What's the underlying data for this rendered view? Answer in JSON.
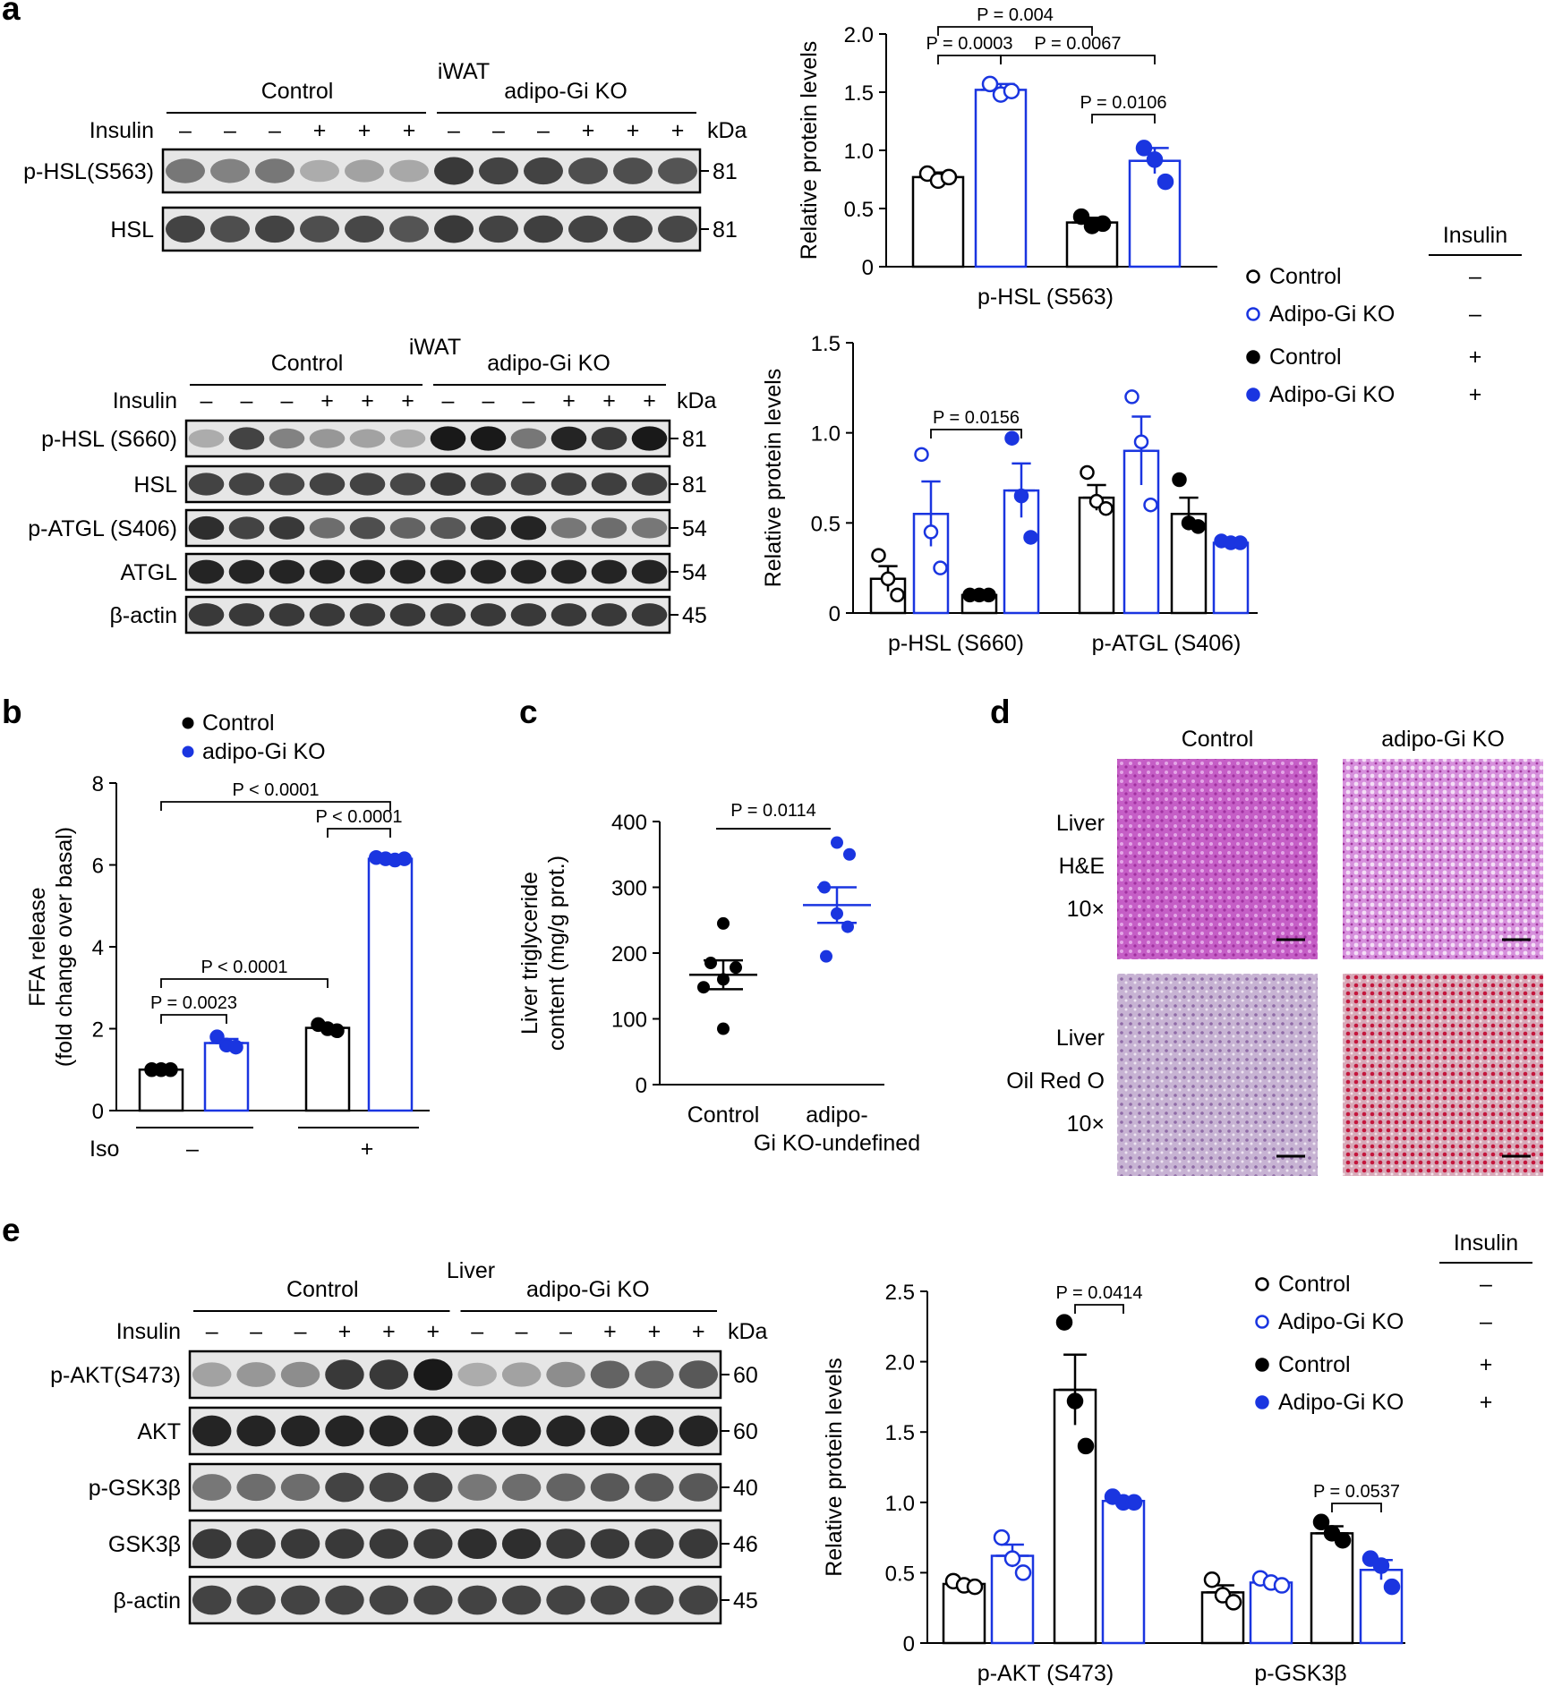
{
  "panels": {
    "a": "a",
    "b": "b",
    "c": "c",
    "d": "d",
    "e": "e"
  },
  "colors": {
    "black": "#000000",
    "blue": "#1a35e0",
    "band": "#222222"
  },
  "blot_a1": {
    "tissue": "iWAT",
    "group_left": "Control",
    "group_right": "adipo-Gi KO",
    "insulin_label": "Insulin",
    "insulin_signs": [
      "–",
      "–",
      "–",
      "+",
      "+",
      "+",
      "–",
      "–",
      "–",
      "+",
      "+",
      "+"
    ],
    "kda_label": "kDa",
    "rows": [
      {
        "label": "p-HSL(S563)",
        "kda": "81",
        "intensity": [
          0.55,
          0.5,
          0.55,
          0.3,
          0.35,
          0.32,
          0.85,
          0.8,
          0.8,
          0.75,
          0.75,
          0.72
        ]
      },
      {
        "label": "HSL",
        "kda": "81",
        "intensity": [
          0.8,
          0.75,
          0.8,
          0.75,
          0.78,
          0.72,
          0.85,
          0.8,
          0.82,
          0.8,
          0.8,
          0.78
        ]
      }
    ]
  },
  "blot_a2": {
    "tissue": "iWAT",
    "group_left": "Control",
    "group_right": "adipo-Gi KO",
    "insulin_label": "Insulin",
    "insulin_signs": [
      "–",
      "–",
      "–",
      "+",
      "+",
      "+",
      "–",
      "–",
      "–",
      "+",
      "+",
      "+"
    ],
    "kda_label": "kDa",
    "rows": [
      {
        "label": "p-HSL (S660)",
        "kda": "81",
        "intensity": [
          0.3,
          0.8,
          0.5,
          0.4,
          0.35,
          0.3,
          1.0,
          1.0,
          0.55,
          0.95,
          0.85,
          1.0
        ]
      },
      {
        "label": "HSL",
        "kda": "81",
        "intensity": [
          0.8,
          0.8,
          0.78,
          0.8,
          0.8,
          0.78,
          0.85,
          0.82,
          0.8,
          0.82,
          0.82,
          0.82
        ]
      },
      {
        "label": "p-ATGL (S406)",
        "kda": "54",
        "intensity": [
          0.9,
          0.8,
          0.85,
          0.6,
          0.75,
          0.65,
          0.7,
          0.9,
          0.95,
          0.55,
          0.6,
          0.55
        ]
      },
      {
        "label": "ATGL",
        "kda": "54",
        "intensity": [
          0.95,
          0.95,
          0.95,
          0.95,
          0.95,
          0.95,
          0.95,
          0.95,
          0.95,
          0.95,
          0.95,
          0.95
        ]
      },
      {
        "label": "β-actin",
        "kda": "45",
        "intensity": [
          0.85,
          0.85,
          0.85,
          0.85,
          0.85,
          0.85,
          0.85,
          0.85,
          0.85,
          0.85,
          0.85,
          0.85
        ]
      }
    ]
  },
  "blot_e": {
    "tissue": "Liver",
    "group_left": "Control",
    "group_right": "adipo-Gi KO",
    "insulin_label": "Insulin",
    "insulin_signs": [
      "–",
      "–",
      "–",
      "+",
      "+",
      "+",
      "–",
      "–",
      "–",
      "+",
      "+",
      "+"
    ],
    "kda_label": "kDa",
    "rows": [
      {
        "label": "p-AKT(S473)",
        "kda": "60",
        "intensity": [
          0.35,
          0.4,
          0.45,
          0.85,
          0.85,
          1.0,
          0.3,
          0.35,
          0.45,
          0.65,
          0.65,
          0.7
        ]
      },
      {
        "label": "AKT",
        "kda": "60",
        "intensity": [
          0.95,
          0.95,
          0.95,
          0.95,
          0.95,
          0.95,
          0.95,
          0.95,
          0.95,
          0.95,
          0.95,
          0.95
        ]
      },
      {
        "label": "p-GSK3β",
        "kda": "40",
        "intensity": [
          0.55,
          0.6,
          0.6,
          0.8,
          0.8,
          0.8,
          0.55,
          0.6,
          0.65,
          0.7,
          0.7,
          0.7
        ]
      },
      {
        "label": "GSK3β",
        "kda": "46",
        "intensity": [
          0.85,
          0.85,
          0.85,
          0.85,
          0.85,
          0.85,
          0.9,
          0.9,
          0.85,
          0.85,
          0.85,
          0.85
        ]
      },
      {
        "label": "β-actin",
        "kda": "45",
        "intensity": [
          0.8,
          0.8,
          0.8,
          0.8,
          0.8,
          0.8,
          0.8,
          0.8,
          0.8,
          0.8,
          0.8,
          0.8
        ]
      }
    ]
  },
  "legend_insulin": {
    "header": "Insulin",
    "items": [
      {
        "name": "Control",
        "sign": "–",
        "filled": false,
        "color": "#000000"
      },
      {
        "name": "Adipo-Gi KO",
        "sign": "–",
        "filled": false,
        "color": "#1a35e0"
      },
      {
        "name": "Control",
        "sign": "+",
        "filled": true,
        "color": "#000000"
      },
      {
        "name": "Adipo-Gi KO",
        "sign": "+",
        "filled": true,
        "color": "#1a35e0"
      }
    ]
  },
  "legend_b": [
    {
      "name": "Control",
      "color": "#000000"
    },
    {
      "name": "adipo-Gi KO",
      "color": "#1a35e0"
    }
  ],
  "histology": {
    "col_headers": [
      "Control",
      "adipo-Gi KO"
    ],
    "rows": [
      {
        "labels": [
          "Liver",
          "H&E",
          "10×"
        ],
        "tint": [
          "#c04fc0",
          "#cf7ad6"
        ]
      },
      {
        "labels": [
          "Liver",
          "Oil Red O",
          "10×"
        ],
        "tint": [
          "#b59ac4",
          "#c85d78"
        ]
      }
    ]
  },
  "chart_data": [
    {
      "id": "a_top",
      "type": "bar",
      "ylabel": "Relative protein levels",
      "ylim": [
        0,
        2.0
      ],
      "yticks": [
        "0",
        "0.5",
        "1.0",
        "1.5",
        "2.0"
      ],
      "groups": [
        {
          "label": "p-HSL (S563)",
          "bars": [
            {
              "value": 0.77,
              "err": 0.04,
              "points": [
                0.8,
                0.74,
                0.77
              ],
              "color": "#000000",
              "filled": false
            },
            {
              "value": 1.52,
              "err": 0.05,
              "points": [
                1.57,
                1.48,
                1.51
              ],
              "color": "#1a35e0",
              "filled": false
            },
            {
              "value": 0.38,
              "err": 0.04,
              "points": [
                0.43,
                0.35,
                0.37
              ],
              "color": "#000000",
              "filled": true
            },
            {
              "value": 0.91,
              "err": 0.11,
              "points": [
                1.02,
                0.92,
                0.73
              ],
              "color": "#1a35e0",
              "filled": true
            }
          ]
        }
      ],
      "annotations": [
        {
          "text": "P = 0.004",
          "from": [
            0,
            0
          ],
          "to": [
            0,
            2
          ]
        },
        {
          "text": "P = 0.0003",
          "from": [
            0,
            0
          ],
          "to": [
            0,
            1
          ]
        },
        {
          "text": "P = 0.0067",
          "from": [
            0,
            1
          ],
          "to": [
            0,
            3
          ]
        },
        {
          "text": "P = 0.0106",
          "from": [
            0,
            2
          ],
          "to": [
            0,
            3
          ]
        }
      ]
    },
    {
      "id": "a_bottom",
      "type": "bar",
      "ylabel": "Relative protein levels",
      "ylim": [
        0,
        1.5
      ],
      "yticks": [
        "0",
        "0.5",
        "1.0",
        "1.5"
      ],
      "groups": [
        {
          "label": "p-HSL (S660)",
          "bars": [
            {
              "value": 0.19,
              "err": 0.07,
              "points": [
                0.32,
                0.19,
                0.1
              ],
              "color": "#000000",
              "filled": false
            },
            {
              "value": 0.55,
              "err": 0.18,
              "points": [
                0.88,
                0.45,
                0.25
              ],
              "color": "#1a35e0",
              "filled": false
            },
            {
              "value": 0.1,
              "err": 0.005,
              "points": [
                0.1,
                0.1,
                0.1
              ],
              "color": "#000000",
              "filled": true
            },
            {
              "value": 0.68,
              "err": 0.15,
              "points": [
                0.97,
                0.65,
                0.42
              ],
              "color": "#1a35e0",
              "filled": true
            }
          ]
        },
        {
          "label": "p-ATGL (S406)",
          "bars": [
            {
              "value": 0.64,
              "err": 0.07,
              "points": [
                0.78,
                0.62,
                0.58
              ],
              "color": "#000000",
              "filled": false
            },
            {
              "value": 0.9,
              "err": 0.19,
              "points": [
                1.2,
                0.95,
                0.6
              ],
              "color": "#1a35e0",
              "filled": false
            },
            {
              "value": 0.55,
              "err": 0.09,
              "points": [
                0.74,
                0.5,
                0.48
              ],
              "color": "#000000",
              "filled": true
            },
            {
              "value": 0.39,
              "err": 0.01,
              "points": [
                0.4,
                0.39,
                0.39
              ],
              "color": "#1a35e0",
              "filled": true
            }
          ]
        }
      ],
      "annotations": [
        {
          "text": "P = 0.0156",
          "from": [
            0,
            1
          ],
          "to": [
            0,
            3
          ]
        }
      ]
    },
    {
      "id": "b",
      "type": "bar",
      "ylabel": "FFA release (fold change over basal)",
      "ylim": [
        0,
        8
      ],
      "yticks": [
        "0",
        "2",
        "4",
        "6",
        "8"
      ],
      "xlabel": "Iso",
      "groups": [
        {
          "label": "–",
          "bars": [
            {
              "value": 1.0,
              "err": 0.01,
              "points": [
                1.0,
                1.0,
                1.0
              ],
              "color": "#000000",
              "filled": true
            },
            {
              "value": 1.65,
              "err": 0.1,
              "points": [
                1.8,
                1.6,
                1.55
              ],
              "color": "#1a35e0",
              "filled": true
            }
          ]
        },
        {
          "label": "+",
          "bars": [
            {
              "value": 2.02,
              "err": 0.05,
              "points": [
                2.1,
                2.0,
                1.95
              ],
              "color": "#000000",
              "filled": true
            },
            {
              "value": 6.15,
              "err": 0.03,
              "points": [
                6.18,
                6.15,
                6.12,
                6.15
              ],
              "color": "#1a35e0",
              "filled": true
            }
          ]
        }
      ],
      "annotations": [
        {
          "text": "P < 0.0001",
          "from": [
            0,
            0
          ],
          "to": [
            1,
            1
          ]
        },
        {
          "text": "P < 0.0001",
          "from": [
            1,
            0
          ],
          "to": [
            1,
            1
          ]
        },
        {
          "text": "P < 0.0001",
          "from": [
            0,
            0
          ],
          "to": [
            1,
            0
          ]
        },
        {
          "text": "P = 0.0023",
          "from": [
            0,
            0
          ],
          "to": [
            0,
            1
          ]
        }
      ]
    },
    {
      "id": "c",
      "type": "scatter",
      "ylabel": "Liver triglyceride content (mg/g prot.)",
      "ylim": [
        0,
        400
      ],
      "yticks": [
        "0",
        "100",
        "200",
        "300",
        "400"
      ],
      "categories": [
        "Control",
        "adipo-Gi KO"
      ],
      "series": [
        {
          "mean": 167,
          "sem": 22,
          "points": [
            245,
            185,
            178,
            160,
            148,
            85
          ],
          "color": "#000000"
        },
        {
          "mean": 273,
          "sem": 27,
          "points": [
            368,
            350,
            300,
            260,
            240,
            195
          ],
          "color": "#1a35e0"
        }
      ],
      "annotation": "P = 0.0114"
    },
    {
      "id": "e",
      "type": "bar",
      "ylabel": "Relative protein levels",
      "ylim": [
        0,
        2.5
      ],
      "yticks": [
        "0",
        "0.5",
        "1.0",
        "1.5",
        "2.0",
        "2.5"
      ],
      "groups": [
        {
          "label": "p-AKT (S473)",
          "bars": [
            {
              "value": 0.42,
              "err": 0.02,
              "points": [
                0.44,
                0.41,
                0.4
              ],
              "color": "#000000",
              "filled": false
            },
            {
              "value": 0.62,
              "err": 0.08,
              "points": [
                0.75,
                0.6,
                0.5
              ],
              "color": "#1a35e0",
              "filled": false
            },
            {
              "value": 1.8,
              "err": 0.25,
              "points": [
                2.28,
                1.72,
                1.4
              ],
              "color": "#000000",
              "filled": true
            },
            {
              "value": 1.01,
              "err": 0.02,
              "points": [
                1.04,
                1.0,
                1.0
              ],
              "color": "#1a35e0",
              "filled": true
            }
          ]
        },
        {
          "label": "p-GSK3β",
          "bars": [
            {
              "value": 0.36,
              "err": 0.05,
              "points": [
                0.45,
                0.34,
                0.29
              ],
              "color": "#000000",
              "filled": false
            },
            {
              "value": 0.43,
              "err": 0.02,
              "points": [
                0.46,
                0.43,
                0.41
              ],
              "color": "#1a35e0",
              "filled": false
            },
            {
              "value": 0.78,
              "err": 0.05,
              "points": [
                0.86,
                0.78,
                0.73
              ],
              "color": "#000000",
              "filled": true
            },
            {
              "value": 0.52,
              "err": 0.07,
              "points": [
                0.6,
                0.55,
                0.4
              ],
              "color": "#1a35e0",
              "filled": true
            }
          ]
        }
      ],
      "annotations": [
        {
          "text": "P = 0.0414",
          "from": [
            0,
            2
          ],
          "to": [
            0,
            3
          ]
        },
        {
          "text": "P = 0.0537",
          "from": [
            1,
            2
          ],
          "to": [
            1,
            3
          ]
        }
      ]
    }
  ]
}
